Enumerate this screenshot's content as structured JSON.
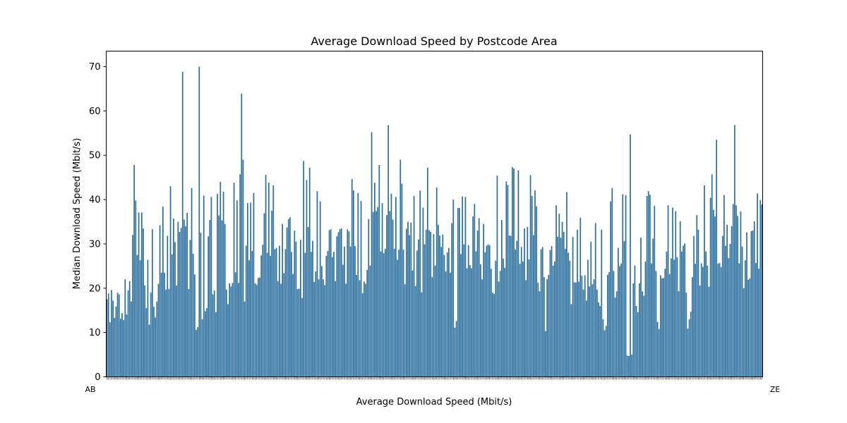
{
  "chart_data": {
    "type": "bar",
    "title": "Average Download Speed by Postcode Area",
    "xlabel": "Average Download Speed (Mbit/s)",
    "ylabel": "Median Download Speed (Mbit/s)",
    "ylim": [
      0,
      73.5
    ],
    "yticks": [
      0,
      10,
      20,
      30,
      40,
      50,
      60,
      70
    ],
    "grid": false,
    "legend": "none",
    "bar_color": "#2b6f9e",
    "category_labels_note": "x tick labels are dense and overlapping; individual category names are not legible",
    "x_first_label": "AB",
    "x_last_label": "ZE",
    "values": [
      17.5,
      18.8,
      12.3,
      19.6,
      17.2,
      13.3,
      15.9,
      19.0,
      18.6,
      13.1,
      14.4,
      12.8,
      22.0,
      14.1,
      19.5,
      21.6,
      17.0,
      32.0,
      47.8,
      39.8,
      27.5,
      37.1,
      26.3,
      37.1,
      33.5,
      20.6,
      15.5,
      26.4,
      11.8,
      19.0,
      33.3,
      15.8,
      13.4,
      17.0,
      21.0,
      34.2,
      23.5,
      38.4,
      23.5,
      19.7,
      31.8,
      19.8,
      43.0,
      27.6,
      35.7,
      30.4,
      20.6,
      35.0,
      32.7,
      33.6,
      68.8,
      35.5,
      34.0,
      37.0,
      19.8,
      30.9,
      42.6,
      27.8,
      23.1,
      10.6,
      11.2,
      70.0,
      32.5,
      13.0,
      40.9,
      14.8,
      15.5,
      31.7,
      35.4,
      40.6,
      18.6,
      19.5,
      14.6,
      41.3,
      36.4,
      44.0,
      35.3,
      41.8,
      34.5,
      19.7,
      16.4,
      21.1,
      20.4,
      21.2,
      43.8,
      23.6,
      39.8,
      21.2,
      45.7,
      63.9,
      49.0,
      17.0,
      29.6,
      39.2,
      26.3,
      39.3,
      28.4,
      41.5,
      21.1,
      20.8,
      22.3,
      22.4,
      27.4,
      29.8,
      36.9,
      45.6,
      28.0,
      43.8,
      27.3,
      37.5,
      43.2,
      28.8,
      29.1,
      21.6,
      29.6,
      21.0,
      34.5,
      23.4,
      28.8,
      33.7,
      35.6,
      36.0,
      28.2,
      23.2,
      33.0,
      30.5,
      19.8,
      19.9,
      30.9,
      17.8,
      48.7,
      28.0,
      44.4,
      33.8,
      47.2,
      28.2,
      30.7,
      21.4,
      23.8,
      41.9,
      22.0,
      39.6,
      25.0,
      22.0,
      20.7,
      27.3,
      28.4,
      33.1,
      33.3,
      27.0,
      28.2,
      21.6,
      31.7,
      32.6,
      33.3,
      33.5,
      25.3,
      29.4,
      21.0,
      33.3,
      32.8,
      29.4,
      44.6,
      42.1,
      29.5,
      23.0,
      41.5,
      21.8,
      39.7,
      18.9,
      21.5,
      21.0,
      24.1,
      35.6,
      25.1,
      55.2,
      37.2,
      43.8,
      37.4,
      38.3,
      47.8,
      28.3,
      39.2,
      27.9,
      28.9,
      36.5,
      56.8,
      37.4,
      41.3,
      35.5,
      28.9,
      40.6,
      26.4,
      28.7,
      49.0,
      43.6,
      28.7,
      20.9,
      33.4,
      35.0,
      32.0,
      34.8,
      24.0,
      40.8,
      20.5,
      28.5,
      31.0,
      42.0,
      19.1,
      38.2,
      29.9,
      33.2,
      47.2,
      33.1,
      32.7,
      22.5,
      32.2,
      25.1,
      42.7,
      34.3,
      31.9,
      29.3,
      32.1,
      27.5,
      23.8,
      28.1,
      29.1,
      23.5,
      34.7,
      40.0,
      11.1,
      12.6,
      38.1,
      38.1,
      27.7,
      40.7,
      29.9,
      40.6,
      24.5,
      29.7,
      25.2,
      24.5,
      36.2,
      39.0,
      28.3,
      33.0,
      35.8,
      25.4,
      22.0,
      34.5,
      28.1,
      29.6,
      29.9,
      29.7,
      24.4,
      19.0,
      18.7,
      26.2,
      45.4,
      21.5,
      23.9,
      35.4,
      26.7,
      24.6,
      44.1,
      43.3,
      31.9,
      31.8,
      47.3,
      47.0,
      28.7,
      30.7,
      46.6,
      25.5,
      29.3,
      26.0,
      33.5,
      21.8,
      33.8,
      26.5,
      45.5,
      40.8,
      32.0,
      42.1,
      38.5,
      21.2,
      19.3,
      28.8,
      29.3,
      22.5,
      10.3,
      22.0,
      23.0,
      28.6,
      29.5,
      25.1,
      26.0,
      38.7,
      31.6,
      36.8,
      31.4,
      35.0,
      32.7,
      28.9,
      41.7,
      28.0,
      26.2,
      16.4,
      31.6,
      21.3,
      21.3,
      33.2,
      21.5,
      35.9,
      22.8,
      19.7,
      22.9,
      17.2,
      26.4,
      20.4,
      30.5,
      20.9,
      22.0,
      34.7,
      19.7,
      16.8,
      16.0,
      33.2,
      13.0,
      10.5,
      11.5,
      23.0,
      23.6,
      39.6,
      42.6,
      23.9,
      17.9,
      19.3,
      29.1,
      25.0,
      25.6,
      41.2,
      30.6,
      41.0,
      4.8,
      4.7,
      54.7,
      5.0,
      21.1,
      25.1,
      16.0,
      14.6,
      21.1,
      31.4,
      19.3,
      18.3,
      26.0,
      40.8,
      41.9,
      41.1,
      25.6,
      31.2,
      38.6,
      23.9,
      12.4,
      10.8,
      22.9,
      22.2,
      22.3,
      24.4,
      28.3,
      38.7,
      23.2,
      26.7,
      38.2,
      26.4,
      37.4,
      27.0,
      19.3,
      35.1,
      28.3,
      29.6,
      30.1,
      19.0,
      10.9,
      13.0,
      14.7,
      22.5,
      31.8,
      25.5,
      36.5,
      33.2,
      20.6,
      25.6,
      24.8,
      43.2,
      28.3,
      25.1,
      20.3,
      40.4,
      45.7,
      37.7,
      36.2,
      53.5,
      25.5,
      25.7,
      24.8,
      31.8,
      41.0,
      29.6,
      34.3,
      26.8,
      30.0,
      34.0,
      39.0,
      56.8,
      38.7,
      36.3,
      25.6,
      37.3,
      29.4,
      20.0,
      26.3,
      32.6,
      21.9,
      22.2,
      32.9,
      33.0,
      35.1,
      25.7,
      41.4,
      24.4,
      39.9,
      38.9
    ]
  }
}
